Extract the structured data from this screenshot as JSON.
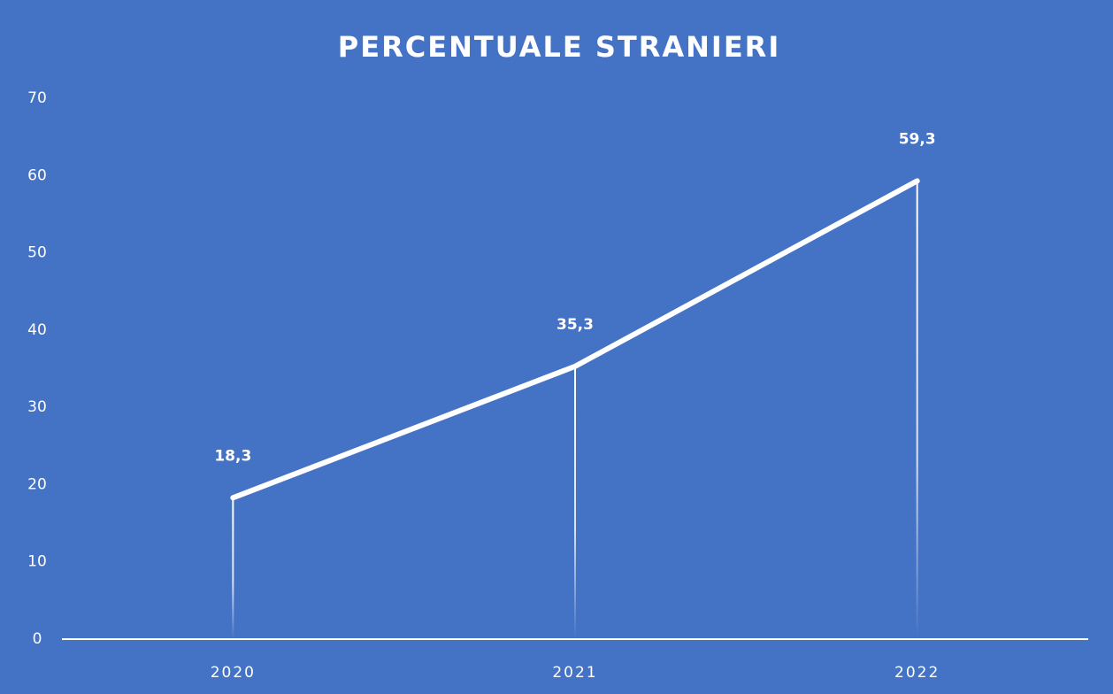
{
  "chart_data": {
    "type": "line",
    "title": "PERCENTUALE STRANIERI",
    "categories": [
      "2020",
      "2021",
      "2022"
    ],
    "values": [
      18.3,
      35.3,
      59.3
    ],
    "value_labels": [
      "18,3",
      "35,3",
      "59,3"
    ],
    "color": "#ffffff",
    "background": "#4472c4",
    "ylim": [
      0,
      70
    ],
    "yticks": [
      0,
      10,
      20,
      30,
      40,
      50,
      60,
      70
    ],
    "grid": false
  }
}
